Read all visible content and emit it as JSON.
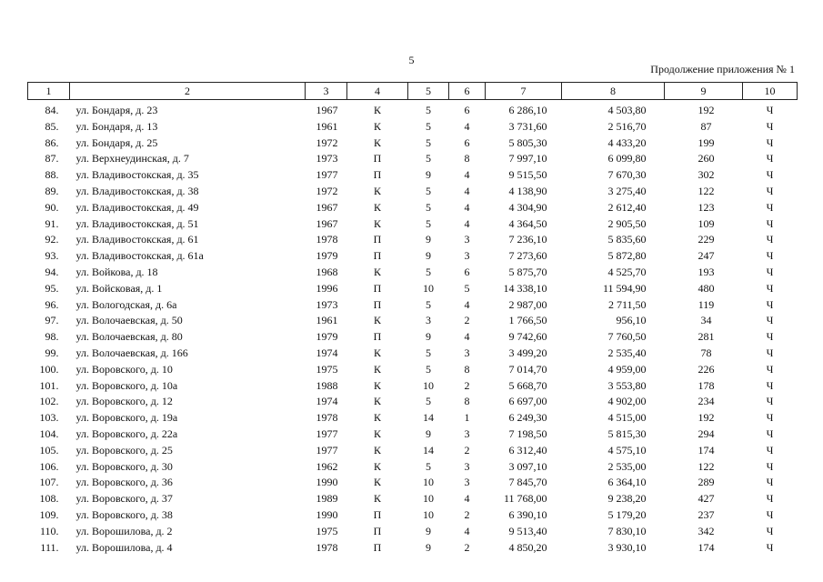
{
  "page": {
    "number": "5",
    "continuation": "Продолжение приложения № 1"
  },
  "table": {
    "headers": [
      "1",
      "2",
      "3",
      "4",
      "5",
      "6",
      "7",
      "8",
      "9",
      "10"
    ],
    "rows": [
      [
        "84.",
        "ул. Бондаря, д. 23",
        "1967",
        "К",
        "5",
        "6",
        "6 286,10",
        "4 503,80",
        "192",
        "Ч"
      ],
      [
        "85.",
        "ул. Бондаря, д. 13",
        "1961",
        "К",
        "5",
        "4",
        "3 731,60",
        "2 516,70",
        "87",
        "Ч"
      ],
      [
        "86.",
        "ул. Бондаря, д. 25",
        "1972",
        "К",
        "5",
        "6",
        "5 805,30",
        "4 433,20",
        "199",
        "Ч"
      ],
      [
        "87.",
        "ул. Верхнеудинская, д. 7",
        "1973",
        "П",
        "5",
        "8",
        "7 997,10",
        "6 099,80",
        "260",
        "Ч"
      ],
      [
        "88.",
        "ул. Владивостокская, д. 35",
        "1977",
        "П",
        "9",
        "4",
        "9 515,50",
        "7 670,30",
        "302",
        "Ч"
      ],
      [
        "89.",
        "ул. Владивостокская, д. 38",
        "1972",
        "К",
        "5",
        "4",
        "4 138,90",
        "3 275,40",
        "122",
        "Ч"
      ],
      [
        "90.",
        "ул. Владивостокская, д. 49",
        "1967",
        "К",
        "5",
        "4",
        "4 304,90",
        "2 612,40",
        "123",
        "Ч"
      ],
      [
        "91.",
        "ул. Владивостокская, д. 51",
        "1967",
        "К",
        "5",
        "4",
        "4 364,50",
        "2 905,50",
        "109",
        "Ч"
      ],
      [
        "92.",
        "ул. Владивостокская, д. 61",
        "1978",
        "П",
        "9",
        "3",
        "7 236,10",
        "5 835,60",
        "229",
        "Ч"
      ],
      [
        "93.",
        "ул. Владивостокская, д. 61а",
        "1979",
        "П",
        "9",
        "3",
        "7 273,60",
        "5 872,80",
        "247",
        "Ч"
      ],
      [
        "94.",
        "ул. Войкова, д. 18",
        "1968",
        "К",
        "5",
        "6",
        "5 875,70",
        "4 525,70",
        "193",
        "Ч"
      ],
      [
        "95.",
        "ул. Войсковая, д. 1",
        "1996",
        "П",
        "10",
        "5",
        "14 338,10",
        "11 594,90",
        "480",
        "Ч"
      ],
      [
        "96.",
        "ул. Вологодская, д. 6а",
        "1973",
        "П",
        "5",
        "4",
        "2 987,00",
        "2 711,50",
        "119",
        "Ч"
      ],
      [
        "97.",
        "ул. Волочаевская, д. 50",
        "1961",
        "К",
        "3",
        "2",
        "1 766,50",
        "956,10",
        "34",
        "Ч"
      ],
      [
        "98.",
        "ул. Волочаевская, д. 80",
        "1979",
        "П",
        "9",
        "4",
        "9 742,60",
        "7 760,50",
        "281",
        "Ч"
      ],
      [
        "99.",
        "ул. Волочаевская, д. 166",
        "1974",
        "К",
        "5",
        "3",
        "3 499,20",
        "2 535,40",
        "78",
        "Ч"
      ],
      [
        "100.",
        "ул. Воровского, д. 10",
        "1975",
        "К",
        "5",
        "8",
        "7 014,70",
        "4 959,00",
        "226",
        "Ч"
      ],
      [
        "101.",
        "ул. Воровского, д. 10а",
        "1988",
        "К",
        "10",
        "2",
        "5 668,70",
        "3 553,80",
        "178",
        "Ч"
      ],
      [
        "102.",
        "ул. Воровского, д. 12",
        "1974",
        "К",
        "5",
        "8",
        "6 697,00",
        "4 902,00",
        "234",
        "Ч"
      ],
      [
        "103.",
        "ул. Воровского, д. 19а",
        "1978",
        "К",
        "14",
        "1",
        "6 249,30",
        "4 515,00",
        "192",
        "Ч"
      ],
      [
        "104.",
        "ул. Воровского, д. 22а",
        "1977",
        "К",
        "9",
        "3",
        "7 198,50",
        "5 815,30",
        "294",
        "Ч"
      ],
      [
        "105.",
        "ул. Воровского, д. 25",
        "1977",
        "К",
        "14",
        "2",
        "6 312,40",
        "4 575,10",
        "174",
        "Ч"
      ],
      [
        "106.",
        "ул. Воровского, д. 30",
        "1962",
        "К",
        "5",
        "3",
        "3 097,10",
        "2 535,00",
        "122",
        "Ч"
      ],
      [
        "107.",
        "ул. Воровского, д. 36",
        "1990",
        "К",
        "10",
        "3",
        "7 845,70",
        "6 364,10",
        "289",
        "Ч"
      ],
      [
        "108.",
        "ул. Воровского, д. 37",
        "1989",
        "К",
        "10",
        "4",
        "11 768,00",
        "9 238,20",
        "427",
        "Ч"
      ],
      [
        "109.",
        "ул. Воровского, д. 38",
        "1990",
        "П",
        "10",
        "2",
        "6 390,10",
        "5 179,20",
        "237",
        "Ч"
      ],
      [
        "110.",
        "ул. Ворошилова, д. 2",
        "1975",
        "П",
        "9",
        "4",
        "9 513,40",
        "7 830,10",
        "342",
        "Ч"
      ],
      [
        "111.",
        "ул. Ворошилова, д. 4",
        "1978",
        "П",
        "9",
        "2",
        "4 850,20",
        "3 930,10",
        "174",
        "Ч"
      ]
    ]
  }
}
